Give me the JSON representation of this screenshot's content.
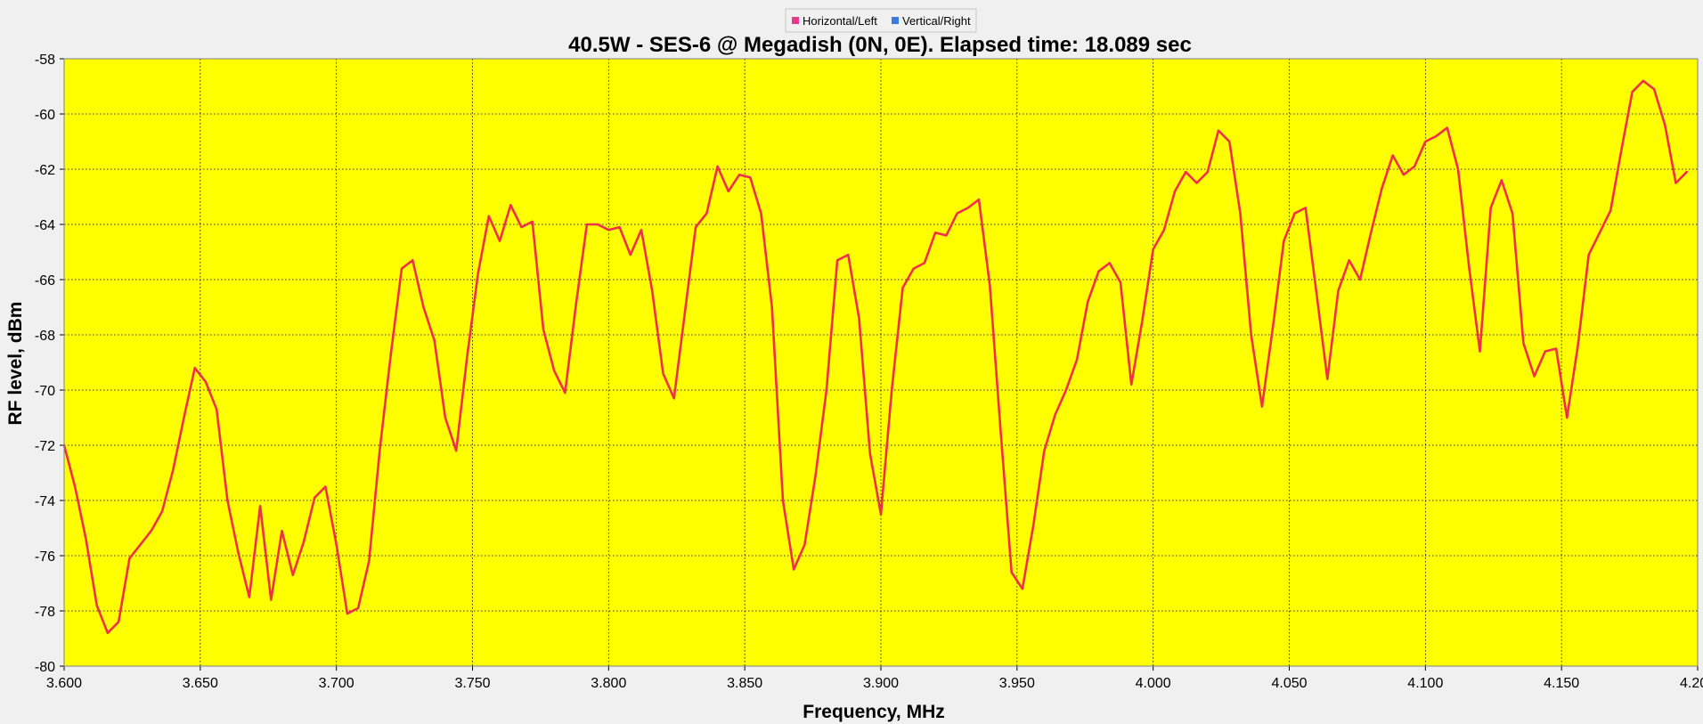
{
  "chart_data": {
    "type": "line",
    "title": "40.5W - SES-6 @ Megadish (0N, 0E). Elapsed time: 18.089 sec",
    "xlabel": "Frequency, MHz",
    "ylabel": "RF level, dBm",
    "xlim": [
      3.6,
      4.2
    ],
    "ylim": [
      -80,
      -58
    ],
    "x_ticks": [
      "3.600",
      "3.650",
      "3.700",
      "3.750",
      "3.800",
      "3.850",
      "3.900",
      "3.950",
      "4.000",
      "4.050",
      "4.100",
      "4.150",
      "4.200"
    ],
    "y_ticks": [
      "-58",
      "-60",
      "-62",
      "-64",
      "-66",
      "-68",
      "-70",
      "-72",
      "-74",
      "-76",
      "-78",
      "-80"
    ],
    "grid": true,
    "legend": {
      "placement": "top-center",
      "entries": [
        {
          "name": "Horizontal/Left",
          "color": "#e8388a"
        },
        {
          "name": "Vertical/Right",
          "color": "#3a7be0"
        }
      ]
    },
    "colors": {
      "plot_bg": "#ffff00",
      "line": "#f0304a",
      "frame_bg": "#f0f0f0"
    },
    "series": [
      {
        "name": "Horizontal/Left",
        "color": "#f0304a",
        "x": [
          3.6,
          3.604,
          3.608,
          3.612,
          3.616,
          3.62,
          3.624,
          3.628,
          3.632,
          3.636,
          3.64,
          3.644,
          3.648,
          3.652,
          3.656,
          3.66,
          3.664,
          3.668,
          3.672,
          3.676,
          3.68,
          3.684,
          3.688,
          3.692,
          3.696,
          3.7,
          3.704,
          3.708,
          3.712,
          3.716,
          3.72,
          3.724,
          3.728,
          3.732,
          3.736,
          3.74,
          3.744,
          3.748,
          3.752,
          3.756,
          3.76,
          3.764,
          3.768,
          3.772,
          3.776,
          3.78,
          3.784,
          3.788,
          3.792,
          3.796,
          3.8,
          3.804,
          3.808,
          3.812,
          3.816,
          3.82,
          3.824,
          3.828,
          3.832,
          3.836,
          3.84,
          3.844,
          3.848,
          3.852,
          3.856,
          3.86,
          3.864,
          3.868,
          3.872,
          3.876,
          3.88,
          3.884,
          3.888,
          3.892,
          3.896,
          3.9,
          3.904,
          3.908,
          3.912,
          3.916,
          3.92,
          3.924,
          3.928,
          3.932,
          3.936,
          3.94,
          3.944,
          3.948,
          3.952,
          3.956,
          3.96,
          3.964,
          3.968,
          3.972,
          3.976,
          3.98,
          3.984,
          3.988,
          3.992,
          3.996,
          4.0,
          4.004,
          4.008,
          4.012,
          4.016,
          4.02,
          4.024,
          4.028,
          4.032,
          4.036,
          4.04,
          4.044,
          4.048,
          4.052,
          4.056,
          4.06,
          4.064,
          4.068,
          4.072,
          4.076,
          4.08,
          4.084,
          4.088,
          4.092,
          4.096,
          4.1,
          4.104,
          4.108,
          4.112,
          4.116,
          4.12,
          4.124,
          4.128,
          4.132,
          4.136,
          4.14,
          4.144,
          4.148,
          4.152,
          4.156,
          4.16,
          4.164,
          4.168,
          4.172,
          4.176,
          4.18,
          4.184,
          4.188,
          4.192,
          4.196
        ],
        "values": [
          -72.0,
          -73.5,
          -75.4,
          -77.8,
          -78.8,
          -78.4,
          -76.1,
          -75.6,
          -75.1,
          -74.4,
          -72.9,
          -71.0,
          -69.2,
          -69.7,
          -70.7,
          -74.0,
          -75.9,
          -77.5,
          -74.2,
          -77.6,
          -75.1,
          -76.7,
          -75.5,
          -73.9,
          -73.5,
          -75.6,
          -78.1,
          -77.9,
          -76.2,
          -72.1,
          -68.7,
          -65.6,
          -65.3,
          -67.0,
          -68.2,
          -71.0,
          -72.2,
          -68.8,
          -65.8,
          -63.7,
          -64.6,
          -63.3,
          -64.1,
          -63.9,
          -67.8,
          -69.3,
          -70.1,
          -66.9,
          -64.0,
          -64.0,
          -64.2,
          -64.1,
          -65.1,
          -64.2,
          -66.4,
          -69.4,
          -70.3,
          -67.2,
          -64.1,
          -63.6,
          -61.9,
          -62.8,
          -62.2,
          -62.3,
          -63.6,
          -67.0,
          -74.0,
          -76.5,
          -75.6,
          -73.1,
          -70.0,
          -65.3,
          -65.1,
          -67.4,
          -72.3,
          -74.5,
          -70.0,
          -66.3,
          -65.6,
          -65.4,
          -64.3,
          -64.4,
          -63.6,
          -63.4,
          -63.1,
          -66.2,
          -71.5,
          -76.6,
          -77.2,
          -74.9,
          -72.2,
          -70.9,
          -70.0,
          -68.9,
          -66.8,
          -65.7,
          -65.4,
          -66.1,
          -69.8,
          -67.5,
          -64.9,
          -64.2,
          -62.8,
          -62.1,
          -62.5,
          -62.1,
          -60.6,
          -61.0,
          -63.6,
          -68.0,
          -70.6,
          -67.7,
          -64.6,
          -63.6,
          -63.4,
          -66.5,
          -69.6,
          -66.4,
          -65.3,
          -66.0,
          -64.3,
          -62.7,
          -61.5,
          -62.2,
          -61.9,
          -61.0,
          -60.8,
          -60.5,
          -62.0,
          -65.5,
          -68.6,
          -63.4,
          -62.4,
          -63.6,
          -68.3,
          -69.5,
          -68.6,
          -68.5,
          -71.0,
          -68.4,
          -65.1,
          -64.3,
          -63.5,
          -61.3,
          -59.2,
          -58.8,
          -59.1,
          -60.4,
          -62.5,
          -62.1
        ]
      }
    ]
  }
}
